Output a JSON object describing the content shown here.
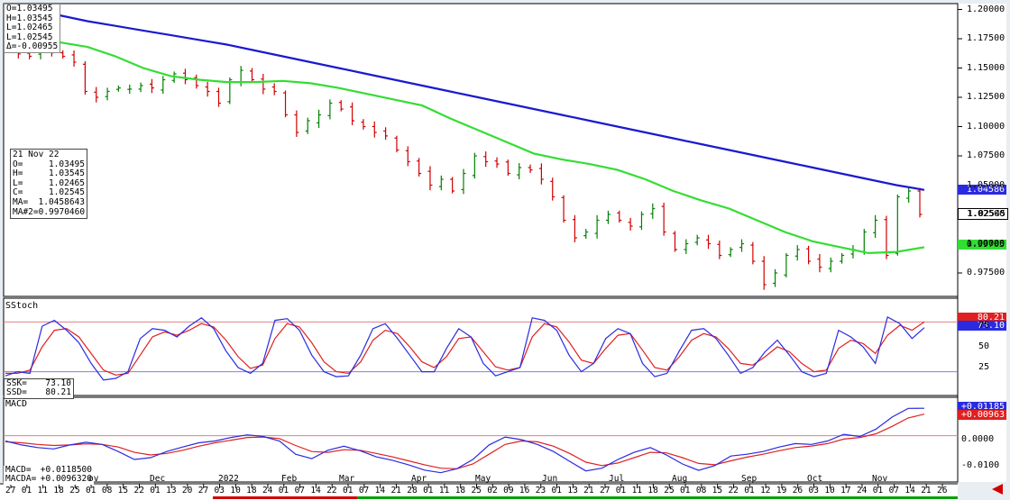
{
  "ohlc_header": {
    "open": "O=1.03495",
    "high": "H=1.03545",
    "low": "L=1.02465",
    "last": "L=1.02545",
    "delta": "Δ=-0.00955"
  },
  "info_box": {
    "date": "21 Nov 22",
    "rows": [
      {
        "k": "O=",
        "v": "1.03495"
      },
      {
        "k": "H=",
        "v": "1.03545"
      },
      {
        "k": "L=",
        "v": "1.02465"
      },
      {
        "k": "C=",
        "v": "1.02545"
      },
      {
        "k": "MA=",
        "v": "1.0458643"
      },
      {
        "k": "MA#2=",
        "v": "0.9970460"
      }
    ]
  },
  "stoch_panel": {
    "title": "SStoch",
    "ssk_label": "SSK=",
    "ssk_value": "73.10",
    "ssd_label": "SSD=",
    "ssd_value": "80.21",
    "tag_ssd": "80.21",
    "tag_ssk": "73.10",
    "ticks": [
      "75",
      "50",
      "25"
    ]
  },
  "macd_panel": {
    "title": "MACD",
    "macd_label": "MACD=",
    "macd_value": "+0.0118500",
    "macda_label": "MACDA=",
    "macda_value": "+0.0096320",
    "tag_macd": "+0.01185",
    "tag_macda": "+0.00963",
    "ticks": [
      "0.0000",
      "-0.0100"
    ]
  },
  "price_tags": {
    "ma_long": "1.04586",
    "last": "1.02545",
    "ma_short": "0.99705"
  },
  "price_ticks": [
    "1.20000",
    "1.17500",
    "1.15000",
    "1.12500",
    "1.10000",
    "1.07500",
    "1.05000",
    "1.02500",
    "1.00000",
    "0.97500"
  ],
  "x_axis": {
    "day_ticks": [
      "27",
      "01",
      "11",
      "18",
      "25",
      "01",
      "08",
      "15",
      "22",
      "01",
      "13",
      "20",
      "27",
      "03",
      "10",
      "18",
      "24",
      "01",
      "07",
      "14",
      "22",
      "01",
      "07",
      "14",
      "21",
      "28",
      "01",
      "11",
      "18",
      "25",
      "02",
      "09",
      "16",
      "23",
      "01",
      "13",
      "21",
      "27",
      "01",
      "11",
      "18",
      "25",
      "01",
      "08",
      "15",
      "22",
      "01",
      "12",
      "19",
      "26",
      "03",
      "10",
      "17",
      "24",
      "01",
      "07",
      "14",
      "21",
      "26"
    ],
    "months": [
      {
        "label": "ov",
        "pos": 106
      },
      {
        "label": "Dec",
        "pos": 174
      },
      {
        "label": "2022",
        "pos": 250
      },
      {
        "label": "Feb",
        "pos": 320
      },
      {
        "label": "Mar",
        "pos": 384
      },
      {
        "label": "Apr",
        "pos": 464
      },
      {
        "label": "May",
        "pos": 535
      },
      {
        "label": "Jun",
        "pos": 609
      },
      {
        "label": "Jul",
        "pos": 683
      },
      {
        "label": "Aug",
        "pos": 753
      },
      {
        "label": "Sep",
        "pos": 830
      },
      {
        "label": "Oct",
        "pos": 903
      },
      {
        "label": "Nov",
        "pos": 975
      }
    ]
  },
  "colors": {
    "ma_long": "#1a1ad0",
    "ma_short": "#33dd33",
    "up_bar": "#008000",
    "down_bar": "#d00000",
    "ssk": "#2a2ae0",
    "ssd": "#e02020"
  },
  "chart_data": [
    {
      "type": "ohlc",
      "x_range": [
        "2021-10-27",
        "2022-11-26"
      ],
      "ylim": [
        0.955,
        1.205
      ],
      "series": [
        {
          "name": "MA",
          "values": [
            1.195,
            1.19,
            1.186,
            1.182,
            1.178,
            1.174,
            1.17,
            1.165,
            1.16,
            1.155,
            1.15,
            1.145,
            1.14,
            1.135,
            1.13,
            1.125,
            1.12,
            1.115,
            1.11,
            1.105,
            1.1,
            1.095,
            1.09,
            1.085,
            1.08,
            1.075,
            1.07,
            1.065,
            1.06,
            1.055,
            1.05,
            1.0459
          ]
        },
        {
          "name": "MA#2",
          "values": [
            1.172,
            1.168,
            1.16,
            1.15,
            1.143,
            1.14,
            1.138,
            1.138,
            1.139,
            1.137,
            1.133,
            1.128,
            1.123,
            1.118,
            1.107,
            1.097,
            1.087,
            1.077,
            1.072,
            1.068,
            1.063,
            1.055,
            1.045,
            1.037,
            1.03,
            1.02,
            1.01,
            1.002,
            0.997,
            0.992,
            0.993,
            0.997
          ]
        }
      ],
      "close": [
        1.165,
        1.162,
        1.16,
        1.165,
        1.163,
        1.16,
        1.155,
        1.13,
        1.125,
        1.13,
        1.133,
        1.132,
        1.135,
        1.133,
        1.14,
        1.145,
        1.14,
        1.135,
        1.13,
        1.12,
        1.14,
        1.148,
        1.14,
        1.132,
        1.13,
        1.11,
        1.095,
        1.105,
        1.11,
        1.12,
        1.115,
        1.105,
        1.1,
        1.095,
        1.092,
        1.08,
        1.07,
        1.06,
        1.05,
        1.055,
        1.045,
        1.06,
        1.075,
        1.07,
        1.068,
        1.06,
        1.065,
        1.063,
        1.055,
        1.04,
        1.02,
        1.005,
        1.01,
        1.02,
        1.025,
        1.02,
        1.015,
        1.025,
        1.03,
        1.01,
        0.995,
        1.0,
        1.005,
        1.0,
        0.99,
        0.995,
        1.0,
        0.985,
        0.965,
        0.975,
        0.99,
        0.995,
        0.985,
        0.98,
        0.985,
        0.99,
        0.995,
        1.01,
        1.02,
        0.99,
        1.04,
        1.045,
        1.025
      ]
    },
    {
      "type": "line",
      "ylim": [
        0,
        100
      ],
      "series": [
        {
          "name": "SSK",
          "values": [
            15,
            20,
            18,
            75,
            82,
            70,
            55,
            30,
            10,
            12,
            20,
            60,
            72,
            70,
            62,
            75,
            85,
            72,
            45,
            25,
            18,
            30,
            82,
            84,
            70,
            40,
            20,
            14,
            15,
            40,
            72,
            78,
            60,
            40,
            20,
            20,
            48,
            72,
            62,
            30,
            15,
            20,
            25,
            85,
            82,
            70,
            40,
            20,
            30,
            60,
            72,
            66,
            30,
            14,
            18,
            45,
            70,
            72,
            60,
            40,
            18,
            25,
            44,
            58,
            40,
            20,
            14,
            18,
            70,
            62,
            50,
            30,
            86,
            78,
            60,
            73.1
          ]
        },
        {
          "name": "SSD",
          "values": [
            18,
            18,
            22,
            50,
            70,
            72,
            62,
            42,
            22,
            16,
            18,
            40,
            62,
            68,
            64,
            70,
            78,
            74,
            58,
            38,
            24,
            28,
            60,
            78,
            74,
            55,
            32,
            20,
            18,
            32,
            58,
            70,
            66,
            50,
            32,
            25,
            38,
            60,
            62,
            44,
            26,
            22,
            25,
            62,
            78,
            74,
            56,
            34,
            30,
            48,
            64,
            66,
            46,
            25,
            22,
            38,
            58,
            66,
            62,
            48,
            30,
            28,
            38,
            50,
            44,
            30,
            20,
            22,
            48,
            58,
            54,
            42,
            64,
            76,
            70,
            80.21
          ]
        }
      ]
    },
    {
      "type": "line",
      "ylim": [
        -0.016,
        0.016
      ],
      "series": [
        {
          "name": "MACD",
          "values": [
            -0.0005,
            -0.002,
            -0.003,
            -0.0035,
            -0.002,
            -0.001,
            -0.0018,
            -0.0045,
            -0.0075,
            -0.0068,
            -0.0045,
            -0.0028,
            -0.0012,
            -0.0005,
            0.0008,
            0.0018,
            0.0012,
            -0.0005,
            -0.0055,
            -0.0072,
            -0.004,
            -0.0025,
            -0.0042,
            -0.0065,
            -0.0078,
            -0.0095,
            -0.0115,
            -0.0125,
            -0.011,
            -0.0075,
            -0.002,
            0.001,
            0.0,
            -0.0018,
            -0.0045,
            -0.0082,
            -0.0118,
            -0.0108,
            -0.0075,
            -0.0048,
            -0.003,
            -0.0058,
            -0.0092,
            -0.0116,
            -0.0098,
            -0.0062,
            -0.0055,
            -0.0045,
            -0.0028,
            -0.0015,
            -0.0018,
            -0.0005,
            0.002,
            0.0012,
            0.004,
            0.0085,
            0.0118,
            0.01185
          ]
        },
        {
          "name": "MACDA",
          "values": [
            -0.0008,
            -0.0012,
            -0.0018,
            -0.0022,
            -0.002,
            -0.0016,
            -0.0018,
            -0.0028,
            -0.0048,
            -0.0058,
            -0.0052,
            -0.004,
            -0.0025,
            -0.0012,
            -0.0002,
            0.0008,
            0.001,
            0.0004,
            -0.0022,
            -0.0045,
            -0.0048,
            -0.0038,
            -0.004,
            -0.0052,
            -0.0065,
            -0.008,
            -0.0095,
            -0.0108,
            -0.011,
            -0.0092,
            -0.0055,
            -0.0018,
            -0.0005,
            -0.0008,
            -0.0025,
            -0.0052,
            -0.0085,
            -0.0098,
            -0.0088,
            -0.0068,
            -0.0048,
            -0.005,
            -0.0068,
            -0.009,
            -0.0095,
            -0.008,
            -0.0066,
            -0.0055,
            -0.0042,
            -0.003,
            -0.0024,
            -0.0015,
            0.0002,
            0.0008,
            0.0022,
            0.005,
            0.0082,
            0.00963
          ]
        }
      ]
    }
  ]
}
